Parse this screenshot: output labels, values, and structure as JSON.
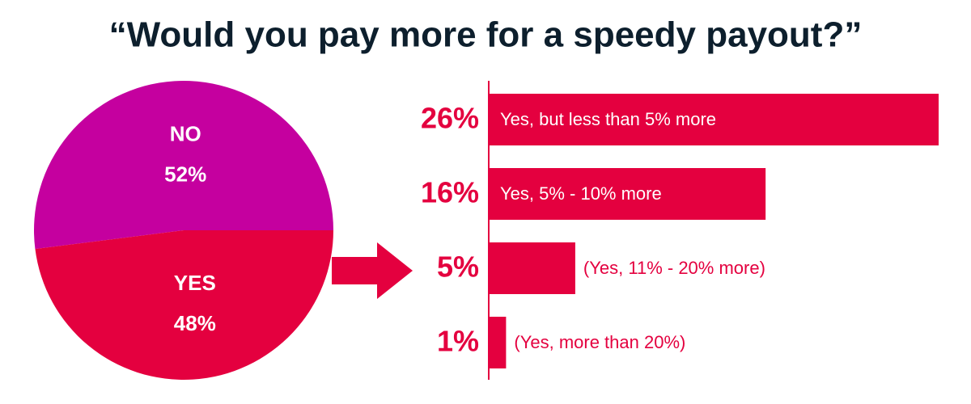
{
  "chart_data": [
    {
      "type": "pie",
      "title": "“Would you pay more for a speedy payout?”",
      "categories": [
        "NO",
        "YES"
      ],
      "values": [
        52,
        48
      ],
      "value_labels": [
        "52%",
        "48%"
      ],
      "colors": [
        "#c5009f",
        "#e4003f"
      ]
    },
    {
      "type": "hbar",
      "categories": [
        "Yes, but less than 5% more",
        "Yes, 5% - 10% more",
        "(Yes, 11% - 20% more)",
        "(Yes, more than 20%)"
      ],
      "values": [
        26,
        16,
        5,
        1
      ],
      "value_labels": [
        "26%",
        "16%",
        "5%",
        "1%"
      ],
      "color": "#e4003f"
    }
  ]
}
